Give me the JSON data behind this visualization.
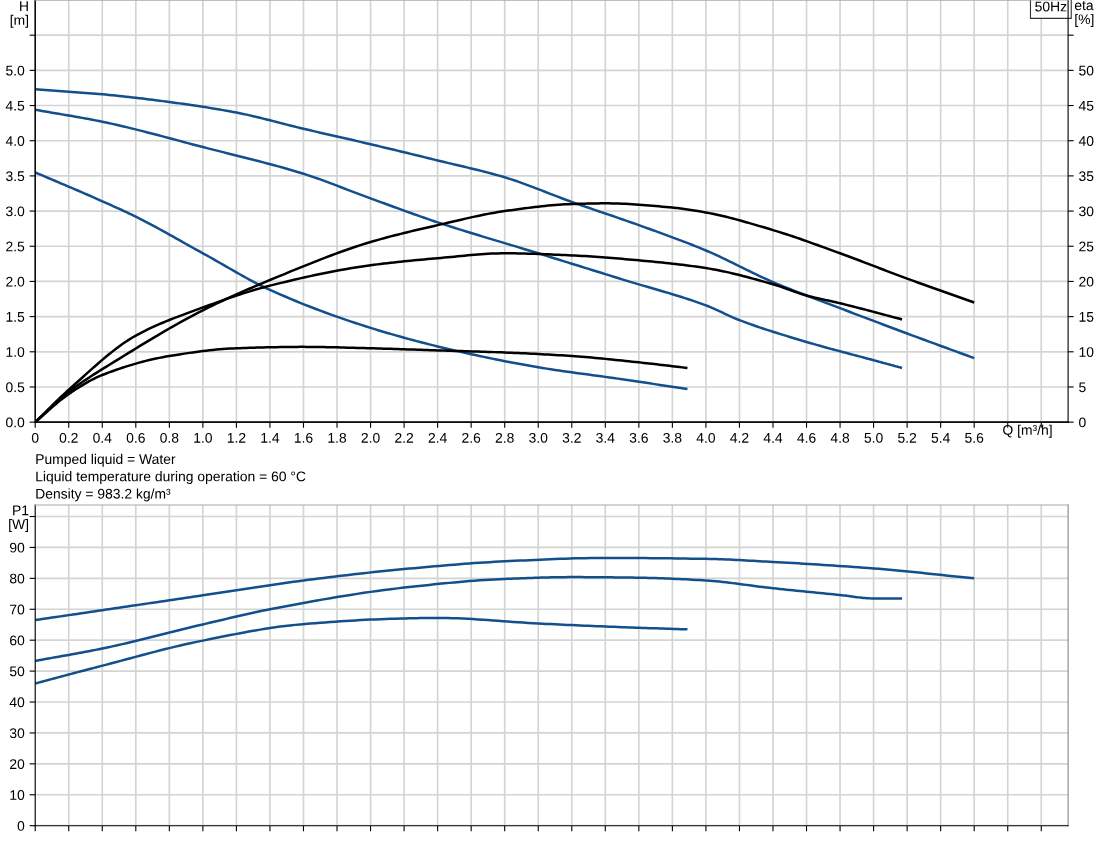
{
  "chart_data": [
    {
      "type": "line",
      "xlabel": "Q [m³/h]",
      "ylabel": "H\n[m]",
      "y2label": "eta\n[%]",
      "xlim": [
        0,
        6.16
      ],
      "xticks": [
        0,
        0.2,
        0.4,
        0.6,
        0.8,
        {
          "value": 1,
          "label": "1.0"
        },
        1.2,
        1.4,
        1.6,
        1.8,
        {
          "value": 2,
          "label": "2.0"
        },
        2.2,
        2.4,
        2.6,
        2.8,
        {
          "value": 3,
          "label": "3.0"
        },
        3.2,
        3.4,
        3.6,
        3.8,
        {
          "value": 4,
          "label": "4.0"
        },
        4.2,
        4.4,
        4.6,
        4.8,
        {
          "value": 5,
          "label": "5.0"
        },
        5.2,
        5.4,
        5.6,
        {
          "value": 5.8,
          "label": null
        },
        {
          "value": 6,
          "label": null
        }
      ],
      "ylim": [
        0,
        6
      ],
      "yticks": [
        {
          "value": 0,
          "label": "0.0"
        },
        0.5,
        {
          "value": 1,
          "label": "1.0"
        },
        1.5,
        {
          "value": 2,
          "label": "2.0"
        },
        2.5,
        {
          "value": 3,
          "label": "3.0"
        },
        3.5,
        {
          "value": 4,
          "label": "4.0"
        },
        4.5,
        {
          "value": 5,
          "label": "5.0"
        },
        {
          "value": 5.5,
          "label": null
        }
      ],
      "y2lim": [
        0,
        60
      ],
      "y2ticks": [
        0,
        5,
        10,
        15,
        20,
        25,
        30,
        35,
        40,
        45,
        50,
        {
          "value": 55,
          "label": null
        }
      ],
      "grid": true,
      "line_style": "solid",
      "marker": "none",
      "annotations": [
        "50Hz",
        "Pumped liquid = Water",
        "Liquid temperature during operation = 60 °C",
        "Density = 983.2 kg/m³"
      ],
      "series": [
        {
          "color": "#134f8c",
          "x": [
            0,
            0.4,
            0.8,
            1.2,
            1.6,
            2.0,
            2.4,
            2.8,
            3.2,
            3.6,
            4.0,
            4.4,
            4.8,
            5.2,
            5.6
          ],
          "values": [
            4.73,
            4.66,
            4.55,
            4.4,
            4.17,
            3.95,
            3.72,
            3.48,
            3.13,
            2.8,
            2.44,
            1.99,
            1.62,
            1.26,
            0.91
          ]
        },
        {
          "color": "#134f8c",
          "x": [
            0,
            0.4,
            1.0,
            1.6,
            2.0,
            2.4,
            3.0,
            3.5,
            4.0,
            4.2,
            4.6,
            5.0,
            5.17
          ],
          "values": [
            4.44,
            4.27,
            3.91,
            3.53,
            3.18,
            2.84,
            2.4,
            2.03,
            1.66,
            1.45,
            1.14,
            0.88,
            0.77
          ]
        },
        {
          "color": "#134f8c",
          "x": [
            0,
            0.39,
            0.6,
            1.0,
            1.4,
            2.0,
            2.5,
            3.0,
            3.5,
            3.89
          ],
          "values": [
            3.55,
            3.15,
            2.92,
            2.4,
            1.88,
            1.34,
            1.02,
            0.78,
            0.61,
            0.47
          ]
        },
        {
          "color": "#000000",
          "axis": "y2",
          "x": [
            0,
            0.2,
            0.5,
            1.0,
            1.4,
            2.0,
            2.4,
            2.8,
            3.2,
            3.4,
            3.8,
            4.0,
            4.4,
            4.8,
            5.2,
            5.6
          ],
          "values": [
            0,
            4.3,
            9.0,
            15.9,
            20.2,
            25.6,
            28.0,
            30.0,
            31.0,
            31.1,
            30.5,
            29.8,
            27.3,
            24.0,
            20.4,
            17.0
          ]
        },
        {
          "color": "#000000",
          "axis": "y2",
          "x": [
            0,
            0.2,
            0.6,
            1.0,
            1.4,
            2.0,
            2.4,
            2.8,
            3.2,
            3.6,
            4.0,
            4.4,
            4.6,
            4.8,
            5.17
          ],
          "values": [
            0,
            4.6,
            12.3,
            16.3,
            19.4,
            22.3,
            23.3,
            24.0,
            23.7,
            23.0,
            21.9,
            19.6,
            18.0,
            16.9,
            14.6
          ]
        },
        {
          "color": "#000000",
          "axis": "y2",
          "x": [
            0,
            0.2,
            0.4,
            0.8,
            1.2,
            1.6,
            2.0,
            2.4,
            2.8,
            3.2,
            3.6,
            3.89
          ],
          "values": [
            0,
            4.0,
            6.7,
            9.4,
            10.5,
            10.7,
            10.5,
            10.2,
            9.9,
            9.4,
            8.5,
            7.7
          ]
        }
      ]
    },
    {
      "type": "line",
      "ylabel": "P1\n[W]",
      "tick_labels": "y",
      "xlim": [
        0,
        6.16
      ],
      "xticks": [
        0,
        0.2,
        0.4,
        0.6,
        0.8,
        1.0,
        1.2,
        1.4,
        1.6,
        1.8,
        2.0,
        2.2,
        2.4,
        2.6,
        2.8,
        3.0,
        3.2,
        3.4,
        3.6,
        3.8,
        4.0,
        4.2,
        4.4,
        4.6,
        4.8,
        5.0,
        5.2,
        5.4,
        5.6,
        5.8,
        6.0
      ],
      "ylim": [
        0,
        103.7
      ],
      "yticks": [
        0,
        10,
        20,
        30,
        40,
        50,
        60,
        70,
        80,
        90,
        {
          "value": 100,
          "label": null
        }
      ],
      "grid": true,
      "line_style": "solid",
      "marker": "none",
      "series": [
        {
          "color": "#134f8c",
          "x": [
            0,
            0.5,
            1.0,
            1.6,
            2.2,
            2.8,
            3.4,
            4.0,
            4.4,
            5.0,
            5.6
          ],
          "values": [
            66.5,
            70.5,
            74.5,
            79.3,
            83.0,
            85.5,
            86.6,
            86.3,
            85.3,
            83.2,
            80.0
          ]
        },
        {
          "color": "#134f8c",
          "x": [
            0,
            0.4,
            1.0,
            1.4,
            2.2,
            2.8,
            3.2,
            3.6,
            4.0,
            4.4,
            4.8,
            5.0,
            5.17
          ],
          "values": [
            53.3,
            57.3,
            65.1,
            70.0,
            77.0,
            79.8,
            80.4,
            80.2,
            79.3,
            76.8,
            74.6,
            73.5,
            73.5
          ]
        },
        {
          "color": "#134f8c",
          "x": [
            0,
            0.39,
            0.985,
            1.58,
            2.18,
            2.4,
            3.0,
            3.5,
            3.89
          ],
          "values": [
            46.0,
            51.6,
            59.7,
            65.1,
            67.0,
            67.2,
            65.4,
            64.2,
            63.5
          ]
        }
      ]
    }
  ]
}
